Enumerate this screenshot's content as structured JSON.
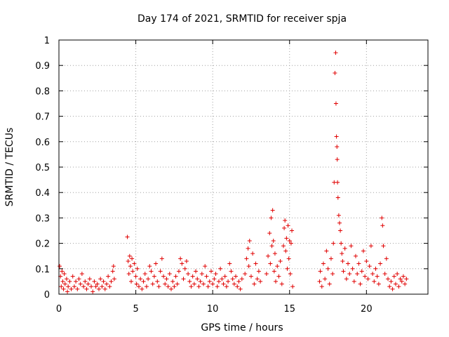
{
  "chart_data": {
    "type": "scatter",
    "title": "Day 174 of 2021, SRMTID for receiver spja",
    "xlabel": "GPS time / hours",
    "ylabel": "SRMTID / TECUs",
    "xlim": [
      0,
      24
    ],
    "ylim": [
      0,
      1
    ],
    "xticks": [
      0,
      5,
      10,
      15,
      20
    ],
    "xtick_labels": [
      "0",
      "5",
      "10",
      "15",
      "20"
    ],
    "yticks": [
      0,
      0.1,
      0.2,
      0.3,
      0.4,
      0.5,
      0.6,
      0.7,
      0.8,
      0.9,
      1
    ],
    "ytick_labels": [
      "0",
      "0.1",
      "0.2",
      "0.3",
      "0.4",
      "0.5",
      "0.6",
      "0.7",
      "0.8",
      "0.9",
      "1"
    ],
    "grid": true,
    "marker": "+",
    "series": [
      {
        "name": "SRMTID",
        "color": "#e00000",
        "points": [
          [
            0.05,
            0.11
          ],
          [
            0.1,
            0.07
          ],
          [
            0.15,
            0.03
          ],
          [
            0.2,
            0.09
          ],
          [
            0.25,
            0.05
          ],
          [
            0.3,
            0.02
          ],
          [
            0.35,
            0.08
          ],
          [
            0.4,
            0.04
          ],
          [
            0.5,
            0.06
          ],
          [
            0.55,
            0.01
          ],
          [
            0.6,
            0.03
          ],
          [
            0.7,
            0.05
          ],
          [
            0.8,
            0.02
          ],
          [
            0.9,
            0.07
          ],
          [
            1.0,
            0.03
          ],
          [
            1.1,
            0.05
          ],
          [
            1.2,
            0.02
          ],
          [
            1.3,
            0.06
          ],
          [
            1.4,
            0.04
          ],
          [
            1.5,
            0.08
          ],
          [
            1.6,
            0.03
          ],
          [
            1.7,
            0.05
          ],
          [
            1.8,
            0.02
          ],
          [
            1.9,
            0.04
          ],
          [
            2.0,
            0.06
          ],
          [
            2.1,
            0.03
          ],
          [
            2.2,
            0.01
          ],
          [
            2.3,
            0.05
          ],
          [
            2.4,
            0.03
          ],
          [
            2.5,
            0.04
          ],
          [
            2.6,
            0.02
          ],
          [
            2.7,
            0.06
          ],
          [
            2.8,
            0.03
          ],
          [
            2.9,
            0.05
          ],
          [
            3.0,
            0.02
          ],
          [
            3.1,
            0.04
          ],
          [
            3.2,
            0.07
          ],
          [
            3.3,
            0.03
          ],
          [
            3.4,
            0.05
          ],
          [
            3.5,
            0.09
          ],
          [
            3.55,
            0.11
          ],
          [
            3.6,
            0.06
          ],
          [
            4.45,
            0.225
          ],
          [
            4.5,
            0.13
          ],
          [
            4.55,
            0.08
          ],
          [
            4.6,
            0.15
          ],
          [
            4.65,
            0.11
          ],
          [
            4.7,
            0.05
          ],
          [
            4.75,
            0.14
          ],
          [
            4.8,
            0.09
          ],
          [
            4.9,
            0.12
          ],
          [
            5.0,
            0.07
          ],
          [
            5.05,
            0.04
          ],
          [
            5.1,
            0.1
          ],
          [
            5.2,
            0.03
          ],
          [
            5.3,
            0.06
          ],
          [
            5.4,
            0.02
          ],
          [
            5.5,
            0.05
          ],
          [
            5.6,
            0.08
          ],
          [
            5.7,
            0.03
          ],
          [
            5.8,
            0.06
          ],
          [
            5.9,
            0.11
          ],
          [
            6.0,
            0.09
          ],
          [
            6.1,
            0.04
          ],
          [
            6.2,
            0.07
          ],
          [
            6.3,
            0.12
          ],
          [
            6.4,
            0.05
          ],
          [
            6.5,
            0.03
          ],
          [
            6.6,
            0.09
          ],
          [
            6.7,
            0.14
          ],
          [
            6.8,
            0.07
          ],
          [
            6.9,
            0.04
          ],
          [
            7.0,
            0.06
          ],
          [
            7.1,
            0.03
          ],
          [
            7.2,
            0.08
          ],
          [
            7.3,
            0.02
          ],
          [
            7.4,
            0.05
          ],
          [
            7.5,
            0.03
          ],
          [
            7.6,
            0.07
          ],
          [
            7.7,
            0.04
          ],
          [
            7.8,
            0.09
          ],
          [
            7.9,
            0.14
          ],
          [
            8.0,
            0.12
          ],
          [
            8.1,
            0.06
          ],
          [
            8.2,
            0.1
          ],
          [
            8.3,
            0.13
          ],
          [
            8.4,
            0.08
          ],
          [
            8.5,
            0.05
          ],
          [
            8.6,
            0.03
          ],
          [
            8.7,
            0.07
          ],
          [
            8.8,
            0.04
          ],
          [
            8.9,
            0.09
          ],
          [
            9.0,
            0.06
          ],
          [
            9.1,
            0.03
          ],
          [
            9.2,
            0.05
          ],
          [
            9.3,
            0.08
          ],
          [
            9.4,
            0.04
          ],
          [
            9.5,
            0.11
          ],
          [
            9.6,
            0.07
          ],
          [
            9.7,
            0.03
          ],
          [
            9.8,
            0.05
          ],
          [
            9.9,
            0.09
          ],
          [
            10.0,
            0.04
          ],
          [
            10.1,
            0.06
          ],
          [
            10.2,
            0.08
          ],
          [
            10.3,
            0.03
          ],
          [
            10.4,
            0.05
          ],
          [
            10.5,
            0.1
          ],
          [
            10.6,
            0.06
          ],
          [
            10.7,
            0.04
          ],
          [
            10.8,
            0.07
          ],
          [
            10.9,
            0.03
          ],
          [
            11.0,
            0.05
          ],
          [
            11.1,
            0.12
          ],
          [
            11.2,
            0.09
          ],
          [
            11.3,
            0.06
          ],
          [
            11.4,
            0.04
          ],
          [
            11.5,
            0.07
          ],
          [
            11.6,
            0.03
          ],
          [
            11.7,
            0.05
          ],
          [
            11.8,
            0.02
          ],
          [
            11.9,
            0.06
          ],
          [
            12.1,
            0.08
          ],
          [
            12.2,
            0.14
          ],
          [
            12.3,
            0.18
          ],
          [
            12.35,
            0.11
          ],
          [
            12.4,
            0.21
          ],
          [
            12.5,
            0.07
          ],
          [
            12.6,
            0.16
          ],
          [
            12.7,
            0.04
          ],
          [
            12.8,
            0.12
          ],
          [
            12.9,
            0.06
          ],
          [
            13.0,
            0.09
          ],
          [
            13.1,
            0.05
          ],
          [
            13.5,
            0.08
          ],
          [
            13.6,
            0.15
          ],
          [
            13.7,
            0.24
          ],
          [
            13.75,
            0.12
          ],
          [
            13.8,
            0.3
          ],
          [
            13.85,
            0.19
          ],
          [
            13.9,
            0.33
          ],
          [
            13.95,
            0.21
          ],
          [
            14.0,
            0.09
          ],
          [
            14.05,
            0.16
          ],
          [
            14.1,
            0.05
          ],
          [
            14.2,
            0.11
          ],
          [
            14.3,
            0.07
          ],
          [
            14.4,
            0.13
          ],
          [
            14.5,
            0.04
          ],
          [
            14.6,
            0.19
          ],
          [
            14.65,
            0.26
          ],
          [
            14.7,
            0.29
          ],
          [
            14.75,
            0.17
          ],
          [
            14.8,
            0.22
          ],
          [
            14.85,
            0.1
          ],
          [
            14.9,
            0.27
          ],
          [
            14.95,
            0.14
          ],
          [
            15.0,
            0.21
          ],
          [
            15.05,
            0.08
          ],
          [
            15.1,
            0.2
          ],
          [
            15.15,
            0.25
          ],
          [
            15.2,
            0.03
          ],
          [
            16.95,
            0.05
          ],
          [
            17.0,
            0.09
          ],
          [
            17.1,
            0.03
          ],
          [
            17.2,
            0.12
          ],
          [
            17.3,
            0.06
          ],
          [
            17.4,
            0.17
          ],
          [
            17.5,
            0.1
          ],
          [
            17.6,
            0.04
          ],
          [
            17.7,
            0.14
          ],
          [
            17.8,
            0.08
          ],
          [
            17.85,
            0.2
          ],
          [
            17.9,
            0.44
          ],
          [
            17.95,
            0.87
          ],
          [
            18.0,
            0.95
          ],
          [
            18.02,
            0.75
          ],
          [
            18.05,
            0.62
          ],
          [
            18.08,
            0.58
          ],
          [
            18.1,
            0.53
          ],
          [
            18.12,
            0.44
          ],
          [
            18.15,
            0.38
          ],
          [
            18.2,
            0.31
          ],
          [
            18.25,
            0.28
          ],
          [
            18.3,
            0.25
          ],
          [
            18.35,
            0.2
          ],
          [
            18.4,
            0.16
          ],
          [
            18.45,
            0.13
          ],
          [
            18.5,
            0.09
          ],
          [
            18.6,
            0.18
          ],
          [
            18.7,
            0.06
          ],
          [
            18.8,
            0.12
          ],
          [
            18.9,
            0.08
          ],
          [
            19.0,
            0.19
          ],
          [
            19.1,
            0.1
          ],
          [
            19.2,
            0.05
          ],
          [
            19.3,
            0.15
          ],
          [
            19.4,
            0.08
          ],
          [
            19.5,
            0.12
          ],
          [
            19.6,
            0.04
          ],
          [
            19.7,
            0.09
          ],
          [
            19.8,
            0.17
          ],
          [
            19.9,
            0.07
          ],
          [
            20.0,
            0.13
          ],
          [
            20.1,
            0.06
          ],
          [
            20.2,
            0.11
          ],
          [
            20.3,
            0.19
          ],
          [
            20.4,
            0.08
          ],
          [
            20.5,
            0.05
          ],
          [
            20.6,
            0.1
          ],
          [
            20.7,
            0.07
          ],
          [
            20.8,
            0.04
          ],
          [
            20.9,
            0.12
          ],
          [
            21.0,
            0.3
          ],
          [
            21.05,
            0.27
          ],
          [
            21.1,
            0.19
          ],
          [
            21.2,
            0.08
          ],
          [
            21.3,
            0.14
          ],
          [
            21.4,
            0.06
          ],
          [
            21.5,
            0.03
          ],
          [
            21.6,
            0.05
          ],
          [
            21.7,
            0.02
          ],
          [
            21.8,
            0.07
          ],
          [
            21.9,
            0.04
          ],
          [
            22.0,
            0.08
          ],
          [
            22.1,
            0.03
          ],
          [
            22.2,
            0.06
          ],
          [
            22.3,
            0.05
          ],
          [
            22.4,
            0.07
          ],
          [
            22.5,
            0.04
          ],
          [
            22.6,
            0.06
          ]
        ]
      }
    ]
  }
}
